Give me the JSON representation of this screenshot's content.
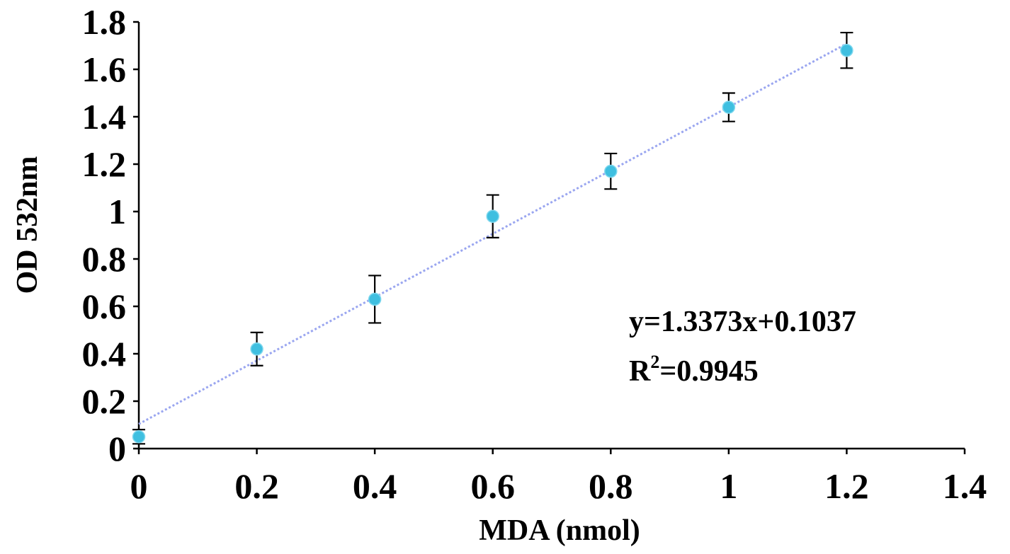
{
  "chart_data": {
    "type": "scatter",
    "xlabel": "MDA (nmol)",
    "ylabel": "OD 532nm",
    "xlim": [
      0,
      1.4
    ],
    "ylim": [
      0,
      1.8
    ],
    "xticks": [
      "0",
      "0.2",
      "0.4",
      "0.6",
      "0.8",
      "1",
      "1.2",
      "1.4"
    ],
    "yticks": [
      "0",
      "0.2",
      "0.4",
      "0.6",
      "0.8",
      "1",
      "1.2",
      "1.4",
      "1.6",
      "1.8"
    ],
    "grid": false,
    "series": [
      {
        "x": [
          0,
          0.2,
          0.4,
          0.6,
          0.8,
          1.0,
          1.2
        ],
        "y": [
          0.05,
          0.42,
          0.63,
          0.98,
          1.17,
          1.44,
          1.68
        ],
        "error": [
          0.03,
          0.07,
          0.1,
          0.09,
          0.075,
          0.06,
          0.075
        ],
        "color": "#3fbfe0"
      }
    ],
    "trendline": {
      "slope": 1.3373,
      "intercept": 0.1037,
      "x_range": [
        0,
        1.2
      ],
      "color": "#9aa6f0",
      "style": "dotted"
    },
    "annotations": {
      "equation": "y=1.3373x+0.1037",
      "r2_base": "R",
      "r2_exp": "2",
      "r2_value": "=0.9945"
    }
  }
}
